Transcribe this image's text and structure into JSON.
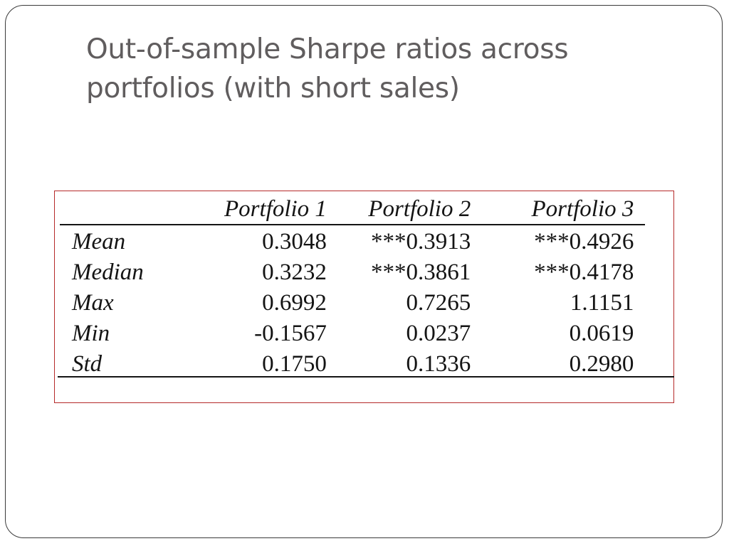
{
  "slide": {
    "title_lines": [
      "Out-of-sample Sharpe ratios across",
      "portfolios (with short sales)"
    ]
  },
  "table": {
    "headers": [
      "",
      "Portfolio 1",
      "Portfolio 2",
      "Portfolio 3"
    ],
    "rows": [
      {
        "label": "Mean",
        "values": [
          "0.3048",
          "***0.3913",
          "***0.4926"
        ]
      },
      {
        "label": "Median",
        "values": [
          "0.3232",
          "***0.3861",
          "***0.4178"
        ]
      },
      {
        "label": "Max",
        "values": [
          "0.6992",
          "0.7265",
          "1.1151"
        ]
      },
      {
        "label": "Min",
        "values": [
          "-0.1567",
          "0.0237",
          "0.0619"
        ]
      },
      {
        "label": "Std",
        "values": [
          "0.1750",
          "0.1336",
          "0.2980"
        ]
      }
    ]
  },
  "colors": {
    "title": "#605d5e",
    "frame_border": "#b52a2a",
    "slide_border": "#3a3a3a"
  }
}
